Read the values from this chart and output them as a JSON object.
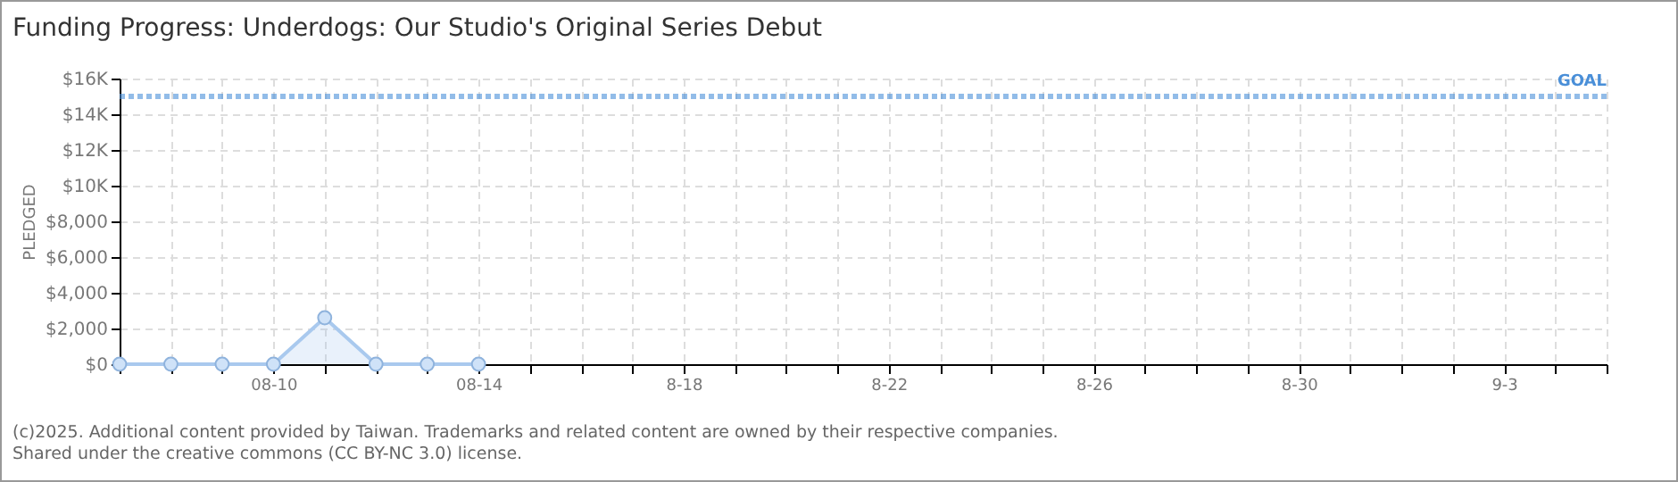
{
  "chart_data": {
    "type": "area",
    "title": "Funding Progress: Underdogs: Our Studio's Original Series Debut",
    "ylabel": "PLEDGED",
    "x": [
      "--08-07",
      "--08-08",
      "--08-09",
      "--08-10",
      "--08-11",
      "--08-12",
      "--08-13",
      "--08-14"
    ],
    "series": [
      {
        "color": "#a9c9ee",
        "values": [
          0,
          0,
          0,
          0,
          2600,
          0,
          0,
          0
        ]
      }
    ],
    "xlim": [
      "--08-07",
      "--09-05"
    ],
    "xticks": [
      {
        "value": "--08-07",
        "label": null
      },
      {
        "value": "--08-08",
        "label": null
      },
      {
        "value": "--08-09",
        "label": null
      },
      {
        "value": "--08-10",
        "label": "08-10"
      },
      {
        "value": "--08-11",
        "label": null
      },
      {
        "value": "--08-12",
        "label": null
      },
      {
        "value": "--08-13",
        "label": null
      },
      {
        "value": "--08-14",
        "label": "08-14"
      },
      {
        "value": "--08-15",
        "label": null
      },
      {
        "value": "--08-16",
        "label": null
      },
      {
        "value": "--08-17",
        "label": null
      },
      {
        "value": "--08-18",
        "label": "8-18"
      },
      {
        "value": "--08-19",
        "label": null
      },
      {
        "value": "--08-20",
        "label": null
      },
      {
        "value": "--08-21",
        "label": null
      },
      {
        "value": "--08-22",
        "label": "8-22"
      },
      {
        "value": "--08-23",
        "label": null
      },
      {
        "value": "--08-24",
        "label": null
      },
      {
        "value": "--08-25",
        "label": null
      },
      {
        "value": "--08-26",
        "label": "8-26"
      },
      {
        "value": "--08-27",
        "label": null
      },
      {
        "value": "--08-28",
        "label": null
      },
      {
        "value": "--08-29",
        "label": null
      },
      {
        "value": "--08-30",
        "label": "8-30"
      },
      {
        "value": "--08-31",
        "label": null
      },
      {
        "value": "--09-01",
        "label": null
      },
      {
        "value": "--09-02",
        "label": null
      },
      {
        "value": "--09-03",
        "label": "9-3"
      },
      {
        "value": "--09-04",
        "label": null
      },
      {
        "value": "--09-05",
        "label": null
      }
    ],
    "ylim": [
      0,
      16000
    ],
    "yticks": [
      {
        "value": 0,
        "label": "$0"
      },
      {
        "value": 2000,
        "label": "$2,000"
      },
      {
        "value": 4000,
        "label": "$4,000"
      },
      {
        "value": 6000,
        "label": "$6,000"
      },
      {
        "value": 8000,
        "label": "$8,000"
      },
      {
        "value": 10000,
        "label": "$10K"
      },
      {
        "value": 12000,
        "label": "$12K"
      },
      {
        "value": 14000,
        "label": "$14K"
      },
      {
        "value": 16000,
        "label": "$16K"
      }
    ],
    "ref_lines": [
      {
        "axis": "y",
        "value": 15000,
        "label": "GOAL",
        "color": "#4a8fd8",
        "line_style": "dotted"
      }
    ],
    "grid": true,
    "marker": "circle",
    "line_style": "solid",
    "annotations": [
      "(c)2025. Additional content provided by Taiwan. Trademarks and related content are owned by their respective companies.",
      "Shared under the creative commons (CC BY-NC 3.0) license."
    ]
  }
}
